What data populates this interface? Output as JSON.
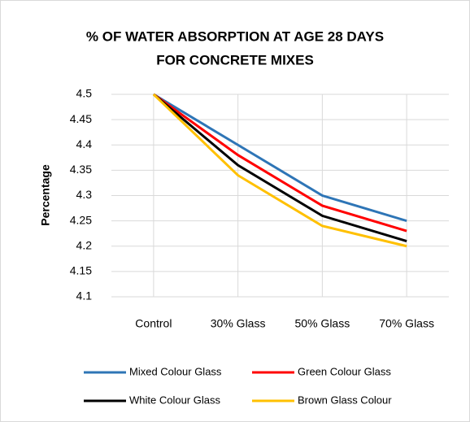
{
  "chart_data": {
    "type": "line",
    "title": [
      "% OF WATER ABSORPTION AT AGE 28 DAYS",
      "FOR CONCRETE MIXES"
    ],
    "y_label": "Percentage",
    "categories": [
      "Control",
      "30% Glass",
      "50% Glass",
      "70% Glass"
    ],
    "series": [
      {
        "name": "Mixed Colour Glass",
        "color": "#2e75b6",
        "values": [
          4.5,
          4.4,
          4.3,
          4.25
        ]
      },
      {
        "name": "Green Colour Glass",
        "color": "#ff0000",
        "values": [
          4.5,
          4.38,
          4.28,
          4.23
        ]
      },
      {
        "name": "White Colour Glass",
        "color": "#000000",
        "values": [
          4.5,
          4.36,
          4.26,
          4.21
        ]
      },
      {
        "name": "Brown Glass Colour",
        "color": "#ffc000",
        "values": [
          4.5,
          4.34,
          4.24,
          4.2
        ]
      }
    ],
    "ylim": [
      4.1,
      4.5
    ],
    "yticks": [
      4.1,
      4.15,
      4.2,
      4.25,
      4.3,
      4.35,
      4.4,
      4.45,
      4.5
    ],
    "grid": true,
    "legend": "bottom"
  }
}
